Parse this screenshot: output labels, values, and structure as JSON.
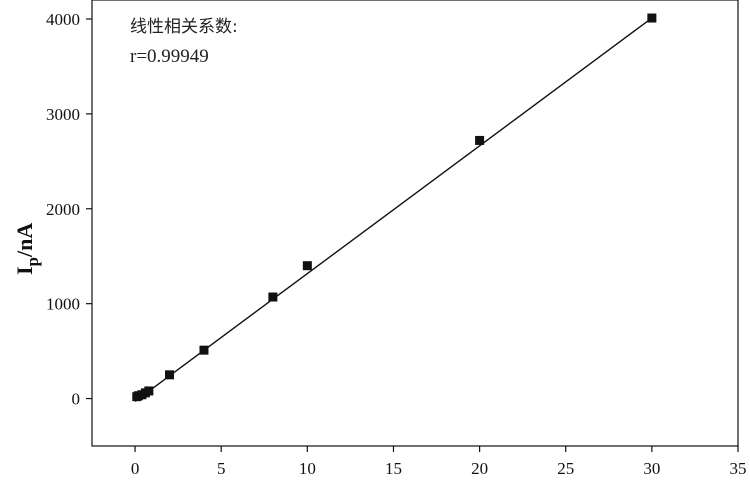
{
  "chart_data": {
    "type": "scatter",
    "title": "",
    "xlabel": "",
    "ylabel_main": "I",
    "ylabel_sub": "p",
    "ylabel_rest": "/nA",
    "xlim": [
      -2.5,
      35
    ],
    "ylim": [
      -500,
      4200
    ],
    "xticks": [
      0,
      5,
      10,
      15,
      20,
      25,
      30,
      35
    ],
    "yticks": [
      0,
      1000,
      2000,
      3000,
      4000
    ],
    "grid": false,
    "series": [
      {
        "marker": "square",
        "color": "#111111",
        "x": [
          0.1,
          0.2,
          0.4,
          0.6,
          0.8,
          2,
          4,
          8,
          10,
          20,
          30
        ],
        "y": [
          20,
          30,
          40,
          60,
          80,
          250,
          510,
          1070,
          1400,
          2720,
          4010
        ]
      }
    ],
    "fit_line": {
      "x": [
        0,
        30
      ],
      "y": [
        -30,
        4010
      ]
    },
    "annotations": [
      {
        "text": "线性相关系数:"
      },
      {
        "text": "r=0.99949"
      }
    ]
  }
}
